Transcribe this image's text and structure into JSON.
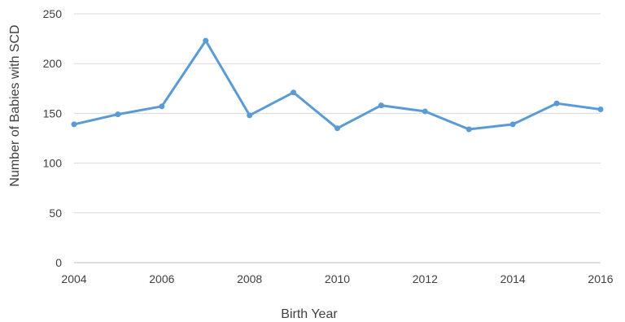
{
  "chart_data": {
    "type": "line",
    "title": "",
    "xlabel": "Birth Year",
    "ylabel": "Number of Babies with SCD",
    "xlim": [
      2004,
      2016
    ],
    "ylim": [
      0,
      250
    ],
    "x_ticks": [
      2004,
      2006,
      2008,
      2010,
      2012,
      2014,
      2016
    ],
    "y_ticks": [
      0,
      50,
      100,
      150,
      200,
      250
    ],
    "grid": "horizontal",
    "legend": "none",
    "series": [
      {
        "color": "#5b9bd5",
        "x": [
          2004,
          2005,
          2006,
          2007,
          2008,
          2009,
          2010,
          2011,
          2012,
          2013,
          2014,
          2015,
          2016
        ],
        "values": [
          139,
          149,
          157,
          223,
          148,
          171,
          135,
          158,
          152,
          134,
          139,
          160,
          154
        ]
      }
    ]
  },
  "colors": {
    "line": "#5b9bd5",
    "grid": "#d9d9d9",
    "text": "#404040"
  }
}
